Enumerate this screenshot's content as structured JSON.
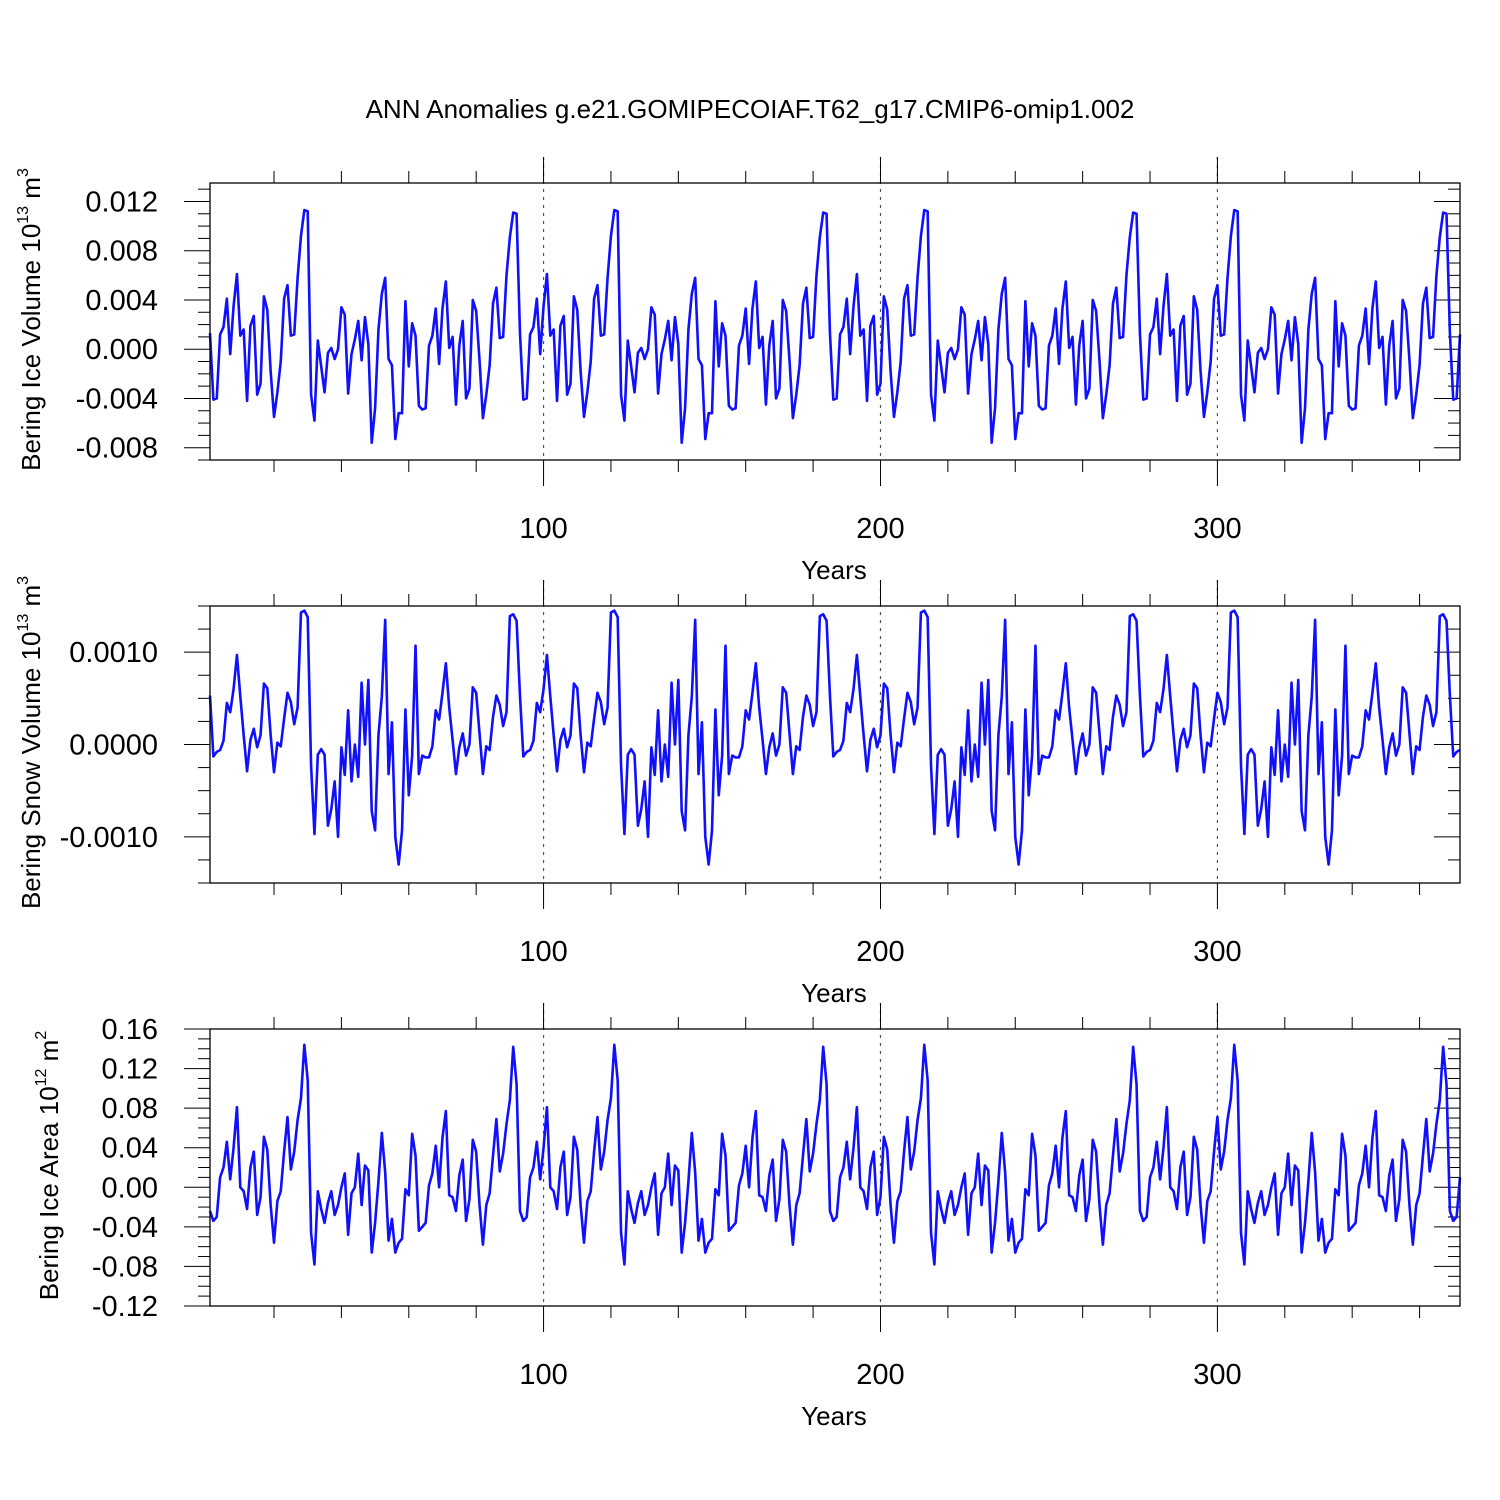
{
  "title": "ANN Anomalies g.e21.GOMIPECOIAF.T62_g17.CMIP6-omip1.002",
  "line_color": "#1010ff",
  "chart_data": [
    {
      "type": "line",
      "ylabel_main": "Bering Ice Volume 10",
      "ylabel_exp": "13",
      "ylabel_tail": " m",
      "ylabel_unit_exp": "3",
      "xlabel": "Years",
      "xlim": [
        1,
        372
      ],
      "ylim": [
        -0.009,
        0.0135
      ],
      "xticks": [
        100,
        200,
        300
      ],
      "xtick_labels": [
        "100",
        "200",
        "300"
      ],
      "yticks": [
        0.012,
        0.008,
        0.004,
        0.0,
        -0.004,
        -0.008
      ],
      "ytick_labels": [
        "0.012",
        "0.008",
        "0.004",
        "0.000",
        "-0.004",
        "-0.008"
      ],
      "cycle_start": 1,
      "cycle": [
        0.0013,
        -0.0041,
        -0.004,
        0.0012,
        0.0018,
        0.0041,
        -0.0004,
        0.0035,
        0.0061,
        0.0011,
        0.0016,
        -0.0042,
        0.0019,
        0.0027,
        -0.0037,
        -0.0028,
        0.0043,
        0.0032,
        -0.0018,
        -0.0055,
        -0.0035,
        -0.001,
        0.0041,
        0.0052,
        0.0011,
        0.0012,
        0.0058,
        0.0092,
        0.0113,
        0.0112,
        -0.0037,
        -0.0058,
        0.0007,
        -0.0014,
        -0.0035,
        -0.0003,
        0.0001,
        -0.0008,
        0.0,
        0.0034,
        0.0028,
        -0.0036,
        -0.0004,
        0.0008,
        0.0023,
        -0.0009,
        0.0026,
        0.0004,
        -0.0076,
        -0.0048,
        0.0016,
        0.0045,
        0.0058,
        -0.0008,
        -0.0013,
        -0.0073,
        -0.0052,
        -0.0052,
        0.0039,
        -0.0014,
        0.0021,
        0.0011,
        -0.0046,
        -0.0049,
        -0.0048,
        0.0003,
        0.0011,
        0.0033,
        -0.0012,
        0.0033,
        0.0055,
        0.0001,
        0.001,
        -0.0045,
        0.0003,
        0.0023,
        -0.004,
        -0.0032,
        0.004,
        0.0031,
        -0.0009,
        -0.0056,
        -0.0037,
        -0.0013,
        0.0037,
        0.005,
        0.0009,
        0.001,
        0.006,
        0.0091,
        0.0111,
        0.011
      ],
      "values": []
    },
    {
      "type": "line",
      "ylabel_main": "Bering Snow Volume 10",
      "ylabel_exp": "13",
      "ylabel_tail": " m",
      "ylabel_unit_exp": "3",
      "xlabel": "Years",
      "xlim": [
        1,
        372
      ],
      "ylim": [
        -0.0015,
        0.0015
      ],
      "xticks": [
        100,
        200,
        300
      ],
      "xtick_labels": [
        "100",
        "200",
        "300"
      ],
      "yticks": [
        0.001,
        0.0,
        -0.001
      ],
      "ytick_labels": [
        "0.0010",
        "0.0000",
        "-0.0010"
      ],
      "cycle_start": 1,
      "cycle": [
        0.00053,
        -0.00013,
        -8e-05,
        -6e-05,
        4e-05,
        0.00045,
        0.00035,
        0.0006,
        0.00097,
        0.00052,
        0.0001,
        -0.00029,
        5e-05,
        0.00017,
        -3e-05,
        0.0001,
        0.00066,
        0.00061,
        0.0001,
        -0.0003,
        2e-05,
        -2e-05,
        0.00028,
        0.00056,
        0.00046,
        0.00022,
        0.0004,
        0.00143,
        0.00145,
        0.00138,
        -0.00023,
        -0.00097,
        -0.00011,
        -5e-05,
        -0.00011,
        -0.00088,
        -0.0007,
        -0.0004,
        -0.001,
        -3e-05,
        -0.00033,
        0.00037,
        -0.0004,
        0.0,
        -0.00035,
        0.00067,
        0.0,
        0.0007,
        -0.00072,
        -0.00093,
        0.0001,
        0.00052,
        0.00135,
        -0.00032,
        0.00024,
        -0.001,
        -0.0013,
        -0.00093,
        0.00038,
        -0.00055,
        -0.00012,
        0.00107,
        -0.00032,
        -0.00012,
        -0.00014,
        -0.00014,
        -2e-05,
        0.00037,
        0.00027,
        0.00056,
        0.00088,
        0.0004,
        5e-05,
        -0.00032,
        -3e-05,
        0.00012,
        -0.00012,
        0.0,
        0.00062,
        0.00056,
        0.00012,
        -0.00032,
        -2e-05,
        -6e-05,
        0.0003,
        0.00053,
        0.00043,
        0.0002,
        0.00035,
        0.00139,
        0.00141,
        0.00134
      ],
      "values": []
    },
    {
      "type": "line",
      "ylabel_main": "Bering Ice Area 10",
      "ylabel_exp": "12",
      "ylabel_tail": " m",
      "ylabel_unit_exp": "2",
      "xlabel": "Years",
      "xlim": [
        1,
        372
      ],
      "ylim": [
        -0.12,
        0.16
      ],
      "xticks": [
        100,
        200,
        300
      ],
      "xtick_labels": [
        "100",
        "200",
        "300"
      ],
      "yticks": [
        0.16,
        0.12,
        0.08,
        0.04,
        0.0,
        -0.04,
        -0.08,
        -0.12
      ],
      "ytick_labels": [
        "0.16",
        "0.12",
        "0.08",
        "0.04",
        "0.00",
        "-0.04",
        "-0.08",
        "-0.12"
      ],
      "cycle_start": 1,
      "cycle": [
        -0.024,
        -0.034,
        -0.03,
        0.01,
        0.02,
        0.046,
        0.008,
        0.04,
        0.081,
        0.0,
        -0.004,
        -0.022,
        0.02,
        0.036,
        -0.028,
        -0.01,
        0.051,
        0.038,
        -0.018,
        -0.056,
        -0.014,
        -0.004,
        0.036,
        0.071,
        0.018,
        0.036,
        0.068,
        0.09,
        0.144,
        0.108,
        -0.046,
        -0.078,
        -0.004,
        -0.022,
        -0.036,
        -0.016,
        -0.004,
        -0.028,
        -0.018,
        0.0,
        0.014,
        -0.048,
        -0.006,
        0.0,
        0.034,
        -0.018,
        0.022,
        0.017,
        -0.066,
        -0.036,
        0.006,
        0.055,
        0.015,
        -0.054,
        -0.032,
        -0.066,
        -0.056,
        -0.052,
        -0.002,
        -0.008,
        0.054,
        0.032,
        -0.044,
        -0.04,
        -0.036,
        0.002,
        0.014,
        0.042,
        0.0,
        0.05,
        0.077,
        -0.008,
        -0.01,
        -0.024,
        0.012,
        0.028,
        -0.034,
        -0.012,
        0.048,
        0.036,
        -0.018,
        -0.058,
        -0.018,
        -0.006,
        0.032,
        0.069,
        0.016,
        0.034,
        0.064,
        0.088,
        0.142,
        0.104
      ],
      "values": []
    }
  ]
}
